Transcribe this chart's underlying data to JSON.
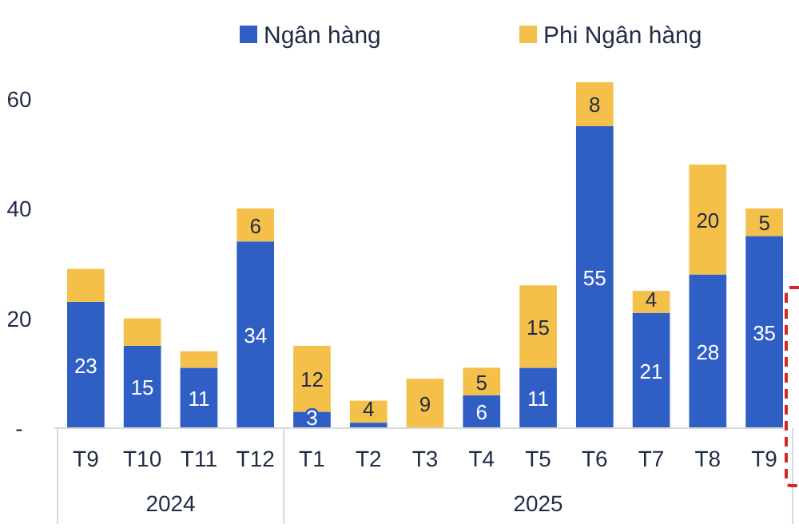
{
  "chart_data": {
    "type": "bar",
    "stacked": true,
    "legend": "top",
    "categories": [
      "T9",
      "T10",
      "T11",
      "T12",
      "T1",
      "T2",
      "T3",
      "T4",
      "T5",
      "T6",
      "T7",
      "T8",
      "T9"
    ],
    "series": [
      {
        "name": "Ngân hàng",
        "color": "#2f5fc4",
        "values": [
          23,
          15,
          11,
          34,
          3,
          1,
          0,
          6,
          11,
          55,
          21,
          28,
          35
        ],
        "value_labels": [
          "23",
          "15",
          "11",
          "34",
          "3",
          null,
          null,
          "6",
          "11",
          "55",
          "21",
          "28",
          "35"
        ]
      },
      {
        "name": "Phi Ngân hàng",
        "color": "#f5c04a",
        "values": [
          6,
          5,
          3,
          6,
          12,
          4,
          9,
          5,
          15,
          8,
          4,
          20,
          5
        ],
        "value_labels": [
          null,
          null,
          null,
          "6",
          "12",
          "4",
          "9",
          "5",
          "15",
          "8",
          "4",
          "20",
          "5"
        ]
      }
    ],
    "ylim": [
      0,
      64
    ],
    "yticks": [
      {
        "value": 0,
        "label": "-"
      },
      20,
      40,
      60
    ],
    "annotations": [
      "2024",
      "2025"
    ]
  }
}
